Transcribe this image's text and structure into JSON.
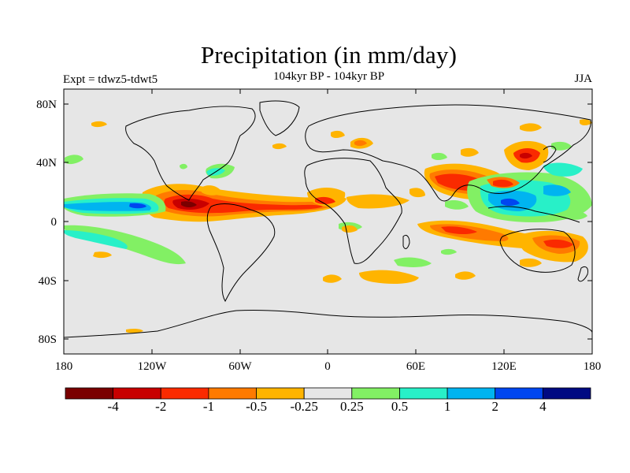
{
  "header": {
    "title": "Precipitation (in mm/day)",
    "subtitle": "104kyr BP - 104kyr BP",
    "left_label": "Expt = tdwz5-tdwt5",
    "right_label": "JJA"
  },
  "axes": {
    "lat_ticks": [
      "80N",
      "40N",
      "0",
      "40S",
      "80S"
    ],
    "lon_ticks": [
      "180",
      "120W",
      "60W",
      "0",
      "60E",
      "120E",
      "180"
    ]
  },
  "colorbar": {
    "colors": [
      "#7a0000",
      "#c80000",
      "#fa2a00",
      "#ff7a00",
      "#ffb400",
      "#e6e6e6",
      "#82f064",
      "#28f0c8",
      "#00b4f0",
      "#0046f0",
      "#000a82"
    ],
    "labels": [
      "-4",
      "-2",
      "-1",
      "-0.5",
      "-0.25",
      "0.25",
      "0.5",
      "1",
      "2",
      "4"
    ]
  },
  "map_style": {
    "background": "#e6e6e6",
    "coast_color": "#000000"
  }
}
